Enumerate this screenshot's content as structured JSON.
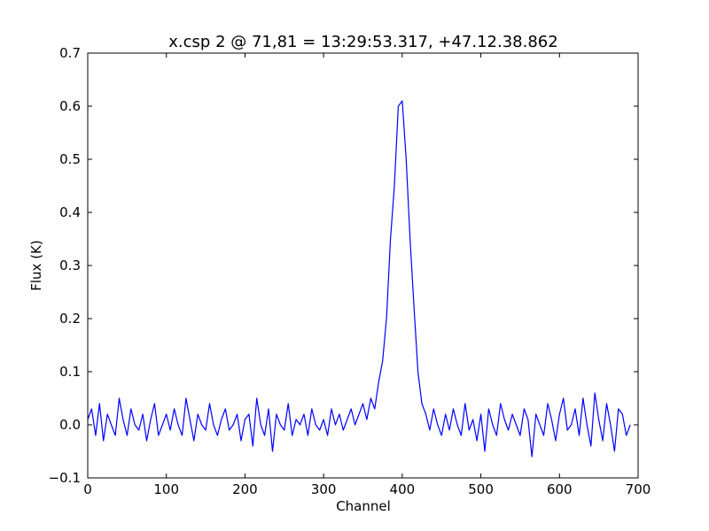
{
  "chart_data": {
    "type": "line",
    "title": "x.csp 2 @ 71,81 = 13:29:53.317, +47.12.38.862",
    "xlabel": "Channel",
    "ylabel": "Flux (K)",
    "xlim": [
      0,
      700
    ],
    "ylim": [
      -0.1,
      0.7
    ],
    "xticks": [
      0,
      100,
      200,
      300,
      400,
      500,
      600,
      700
    ],
    "yticks": [
      -0.1,
      0.0,
      0.1,
      0.2,
      0.3,
      0.4,
      0.5,
      0.6,
      0.7
    ],
    "xtick_labels": [
      "0",
      "100",
      "200",
      "300",
      "400",
      "500",
      "600",
      "700"
    ],
    "ytick_labels": [
      "−0.1",
      "0.0",
      "0.1",
      "0.2",
      "0.3",
      "0.4",
      "0.5",
      "0.6",
      "0.7"
    ],
    "grid": false,
    "line_color": "#0000ff",
    "series": [
      {
        "x": [
          0,
          5,
          10,
          15,
          20,
          25,
          30,
          35,
          40,
          45,
          50,
          55,
          60,
          65,
          70,
          75,
          80,
          85,
          90,
          95,
          100,
          105,
          110,
          115,
          120,
          125,
          130,
          135,
          140,
          145,
          150,
          155,
          160,
          165,
          170,
          175,
          180,
          185,
          190,
          195,
          200,
          205,
          210,
          215,
          220,
          225,
          230,
          235,
          240,
          245,
          250,
          255,
          260,
          265,
          270,
          275,
          280,
          285,
          290,
          295,
          300,
          305,
          310,
          315,
          320,
          325,
          330,
          335,
          340,
          345,
          350,
          355,
          360,
          365,
          370,
          375,
          380,
          385,
          390,
          395,
          400,
          405,
          410,
          415,
          420,
          425,
          430,
          435,
          440,
          445,
          450,
          455,
          460,
          465,
          470,
          475,
          480,
          485,
          490,
          495,
          500,
          505,
          510,
          515,
          520,
          525,
          530,
          535,
          540,
          545,
          550,
          555,
          560,
          565,
          570,
          575,
          580,
          585,
          590,
          595,
          600,
          605,
          610,
          615,
          620,
          625,
          630,
          635,
          640,
          645,
          650,
          655,
          660,
          665,
          670,
          675,
          680,
          685,
          690
        ],
        "values": [
          0.01,
          0.03,
          -0.02,
          0.04,
          -0.03,
          0.02,
          0.0,
          -0.02,
          0.05,
          0.01,
          -0.02,
          0.03,
          0.0,
          -0.01,
          0.02,
          -0.03,
          0.01,
          0.04,
          -0.02,
          0.0,
          0.02,
          -0.01,
          0.03,
          0.0,
          -0.02,
          0.05,
          0.01,
          -0.03,
          0.02,
          0.0,
          -0.01,
          0.04,
          0.0,
          -0.02,
          0.01,
          0.03,
          -0.01,
          0.0,
          0.02,
          -0.03,
          0.01,
          0.02,
          -0.04,
          0.05,
          0.0,
          -0.02,
          0.03,
          -0.05,
          0.02,
          0.0,
          -0.01,
          0.04,
          -0.02,
          0.01,
          0.0,
          0.02,
          -0.02,
          0.03,
          0.0,
          -0.01,
          0.01,
          -0.02,
          0.03,
          0.0,
          0.02,
          -0.01,
          0.01,
          0.03,
          0.0,
          0.02,
          0.04,
          0.01,
          0.05,
          0.03,
          0.08,
          0.12,
          0.2,
          0.35,
          0.45,
          0.6,
          0.61,
          0.5,
          0.35,
          0.22,
          0.1,
          0.04,
          0.02,
          -0.01,
          0.03,
          0.0,
          -0.02,
          0.02,
          -0.01,
          0.03,
          0.0,
          -0.02,
          0.04,
          -0.01,
          0.01,
          -0.03,
          0.02,
          -0.05,
          0.03,
          0.0,
          -0.02,
          0.04,
          0.01,
          -0.01,
          0.02,
          0.0,
          -0.02,
          0.03,
          0.01,
          -0.06,
          0.02,
          0.0,
          -0.02,
          0.04,
          0.01,
          -0.03,
          0.02,
          0.05,
          -0.01,
          0.0,
          0.03,
          -0.02,
          0.05,
          0.0,
          -0.04,
          0.06,
          0.01,
          -0.03,
          0.04,
          0.0,
          -0.05,
          0.03,
          0.02,
          -0.02,
          0.0
        ]
      }
    ]
  }
}
